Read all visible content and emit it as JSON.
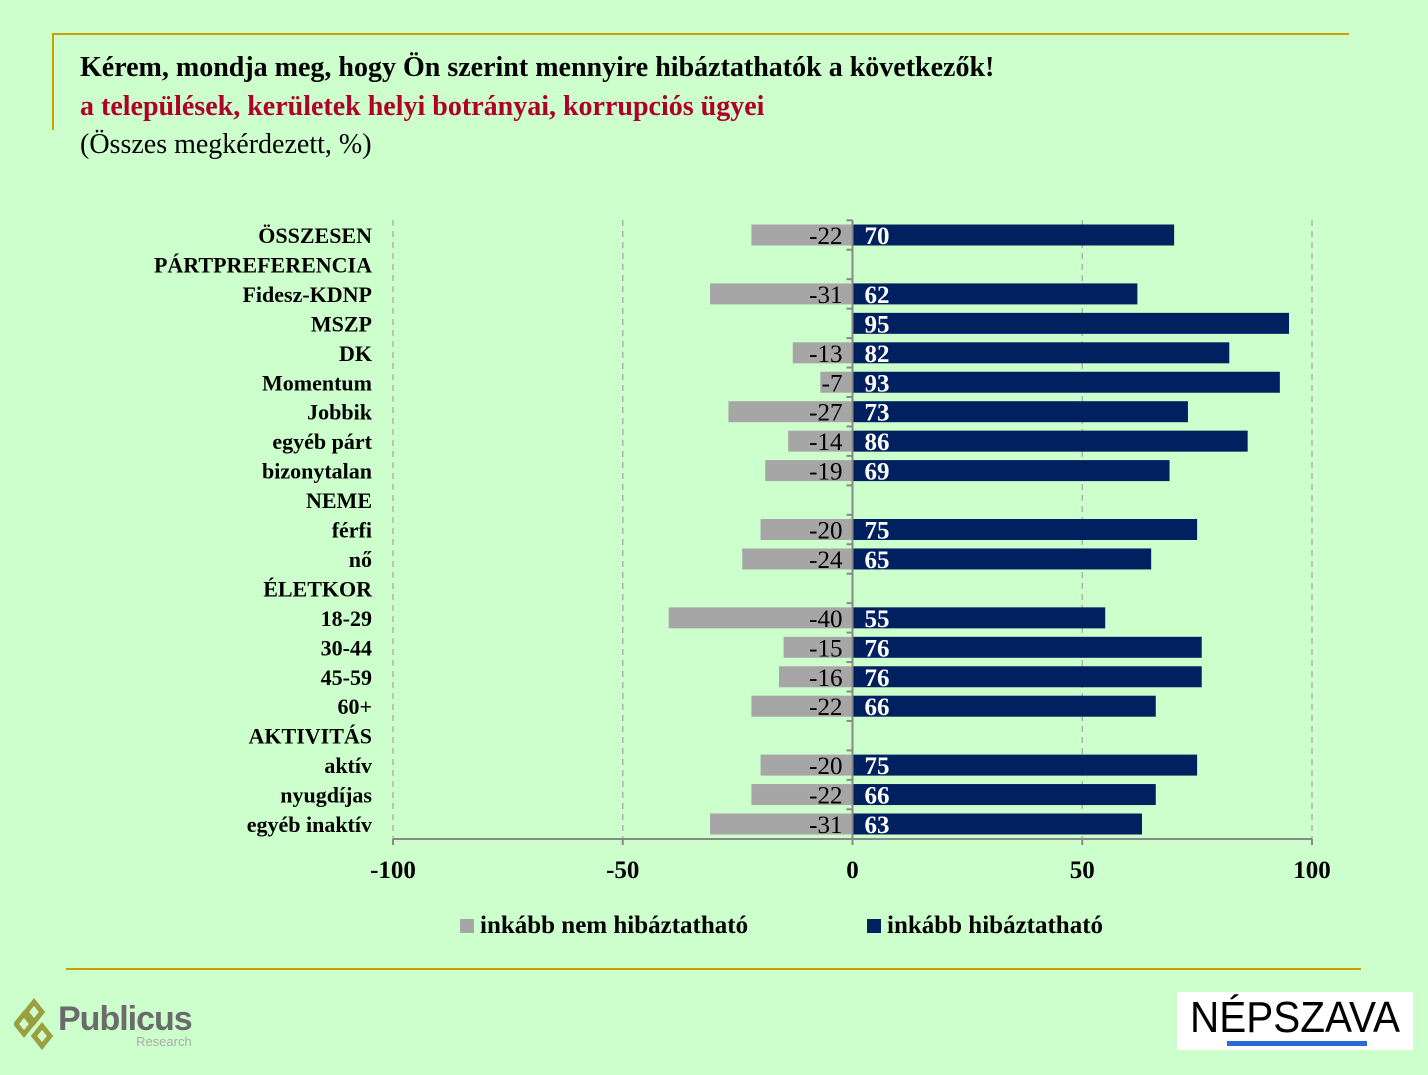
{
  "title": "Kérem, mondja meg, hogy Ön szerint mennyire hibáztathatók a következők!",
  "subtitle": "a települések, kerületek helyi botrányai, korrupciós ügyei",
  "note": "(Összes megkérdezett, %)",
  "logos": {
    "left": "Publicus",
    "left_sub": "Research",
    "right": "NÉPSZAVA"
  },
  "chart_data": {
    "type": "bar",
    "orientation": "horizontal-diverging",
    "categories": [
      "ÖSSZESEN",
      "PÁRTPREFERENCIA",
      "Fidesz-KDNP",
      "MSZP",
      "DK",
      "Momentum",
      "Jobbik",
      "egyéb párt",
      "bizonytalan",
      "NEME",
      "férfi",
      "nő",
      "ÉLETKOR",
      "18-29",
      "30-44",
      "45-59",
      "60+",
      "AKTIVITÁS",
      "aktív",
      "nyugdíjas",
      "egyéb inaktív"
    ],
    "header_rows": [
      "ÖSSZESEN",
      "PÁRTPREFERENCIA",
      "NEME",
      "ÉLETKOR",
      "AKTIVITÁS"
    ],
    "series": [
      {
        "name": "inkább nem hibáztatható",
        "color": "#a6a6a6",
        "values": [
          -22,
          null,
          -31,
          null,
          -13,
          -7,
          -27,
          -14,
          -19,
          null,
          -20,
          -24,
          null,
          -40,
          -15,
          -16,
          -22,
          null,
          -20,
          -22,
          -31
        ]
      },
      {
        "name": "inkább hibáztatható",
        "color": "#002060",
        "values": [
          70,
          null,
          62,
          95,
          82,
          93,
          73,
          86,
          69,
          null,
          75,
          65,
          null,
          55,
          76,
          76,
          66,
          null,
          75,
          66,
          63
        ]
      }
    ],
    "xlim": [
      -100,
      100
    ],
    "xticks": [
      -100,
      -50,
      0,
      50,
      100
    ],
    "grid": "vertical dashed",
    "legend": "bottom"
  }
}
